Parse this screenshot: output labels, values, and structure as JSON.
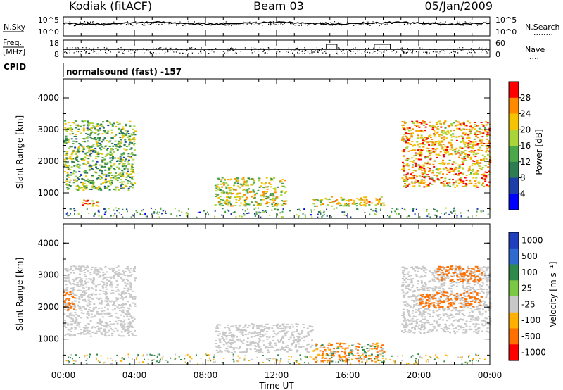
{
  "header": {
    "station": "Kodiak (fitACF)",
    "beam": "Beam 03",
    "date": "05/Jan/2009"
  },
  "strip_labels": {
    "nsky": "N.Sky",
    "nsearch": "N.Search",
    "nsearch_dots": "........",
    "freq_line1": "Freq.",
    "freq_line2": "[MHz]",
    "nave": "Nave",
    "nave_dots": "....",
    "cpid": "CPID",
    "program": "normalsound (fast) -157"
  },
  "strip_ticks": {
    "noise_left_top": "10^5",
    "noise_left_bottom": "10^0",
    "noise_right_top": "10^5",
    "noise_right_bottom": "10^0",
    "freq_left_top": "18",
    "freq_left_bottom": "8",
    "nave_right_top": "60",
    "nave_right_bottom": "0"
  },
  "colors": {
    "power_scale": [
      "#0000ff",
      "#1f3fa8",
      "#2e7d52",
      "#4aa84a",
      "#a9d43a",
      "#f5c400",
      "#ff8a00",
      "#ff0000"
    ],
    "velocity_scale": [
      "#1f3fbf",
      "#2e6ad0",
      "#2e8a4a",
      "#7ac843",
      "#c8c8c8",
      "#ffb000",
      "#ff7000",
      "#ff0000"
    ]
  },
  "chart_data": [
    {
      "type": "heatmap",
      "title": "",
      "ylabel": "Slant Range [km]",
      "xlabel": "",
      "ylim": [
        200,
        4600
      ],
      "yticks": [
        "1000",
        "2000",
        "3000",
        "4000"
      ],
      "ytick_values": [
        1000,
        2000,
        3000,
        4000
      ],
      "colorbar": {
        "label": "Power [dB]",
        "ticks": [
          "4",
          "8",
          "12",
          "16",
          "20",
          "24",
          "28"
        ],
        "range": [
          0,
          30
        ]
      },
      "echo_regions": [
        {
          "t0": 0.0,
          "t1": 4.0,
          "r0": 1100,
          "r1": 3300,
          "power": 14
        },
        {
          "t0": 1.0,
          "t1": 2.0,
          "r0": 600,
          "r1": 800,
          "power": 24
        },
        {
          "t0": 8.5,
          "t1": 12.5,
          "r0": 600,
          "r1": 1500,
          "power": 18
        },
        {
          "t0": 14.0,
          "t1": 18.0,
          "r0": 600,
          "r1": 900,
          "power": 20
        },
        {
          "t0": 19.0,
          "t1": 24.0,
          "r0": 1200,
          "r1": 3300,
          "power": 22
        }
      ]
    },
    {
      "type": "heatmap",
      "title": "",
      "ylabel": "Slant Range [km]",
      "xlabel": "Time UT",
      "ylim": [
        200,
        4600
      ],
      "yticks": [
        "1000",
        "2000",
        "3000",
        "4000"
      ],
      "ytick_values": [
        1000,
        2000,
        3000,
        4000
      ],
      "xticks": [
        "00:00",
        "04:00",
        "08:00",
        "12:00",
        "16:00",
        "20:00",
        "00:00"
      ],
      "xtick_values": [
        0,
        4,
        8,
        12,
        16,
        20,
        24
      ],
      "colorbar": {
        "label": "Velocity [m s⁻¹]",
        "ticks": [
          "1000",
          "500",
          "100",
          "25",
          "-25",
          "-100",
          "-500",
          "-1000"
        ]
      },
      "echo_regions": [
        {
          "t0": 0.0,
          "t1": 4.0,
          "r0": 1100,
          "r1": 3300,
          "velocity": 0
        },
        {
          "t0": 0.0,
          "t1": 0.6,
          "r0": 1900,
          "r1": 2500,
          "velocity": -300
        },
        {
          "t0": 8.5,
          "t1": 14.0,
          "r0": 600,
          "r1": 1500,
          "velocity": 0
        },
        {
          "t0": 14.0,
          "t1": 18.0,
          "r0": 300,
          "r1": 900,
          "velocity": -80
        },
        {
          "t0": 19.0,
          "t1": 24.0,
          "r0": 1200,
          "r1": 3300,
          "velocity": 0
        },
        {
          "t0": 20.0,
          "t1": 23.5,
          "r0": 2000,
          "r1": 2500,
          "velocity": -300
        },
        {
          "t0": 21.0,
          "t1": 23.5,
          "r0": 2800,
          "r1": 3300,
          "velocity": -300
        }
      ]
    }
  ]
}
